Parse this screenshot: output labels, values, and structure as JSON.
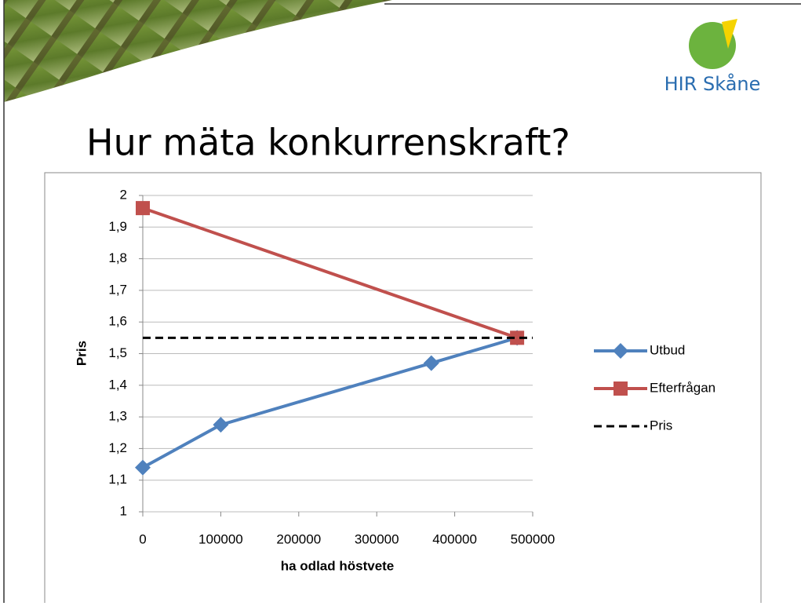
{
  "header": {
    "logo": "HIR Skåne",
    "title": "Hur mäta konkurrenskraft?"
  },
  "chart_data": {
    "type": "line",
    "xlabel": "ha odlad höstvete",
    "ylabel": "Pris",
    "xlim": [
      0,
      500000
    ],
    "xticks": [
      0,
      100000,
      200000,
      300000,
      400000,
      500000
    ],
    "ylim": [
      1,
      2
    ],
    "yticks": [
      1,
      {
        "value": 1.1,
        "label": "1,1"
      },
      {
        "value": 1.2,
        "label": "1,2"
      },
      {
        "value": 1.3,
        "label": "1,3"
      },
      {
        "value": 1.4,
        "label": "1,4"
      },
      {
        "value": 1.5,
        "label": "1,5"
      },
      {
        "value": 1.6,
        "label": "1,6"
      },
      {
        "value": 1.7,
        "label": "1,7"
      },
      {
        "value": 1.8,
        "label": "1,8"
      },
      {
        "value": 1.9,
        "label": "1,9"
      },
      2
    ],
    "grid": true,
    "legend": "right",
    "series": [
      {
        "name": "Utbud",
        "color": "#4f81bd",
        "marker": "diamond",
        "x": [
          0,
          100000,
          370000,
          480000
        ],
        "values": [
          1.14,
          1.275,
          1.47,
          1.55
        ]
      },
      {
        "name": "Efterfrågan",
        "color": "#c0504d",
        "marker": "square",
        "x": [
          0,
          480000
        ],
        "values": [
          1.96,
          1.55
        ]
      },
      {
        "name": "Pris",
        "color": "#000000",
        "marker": "none",
        "dash": true,
        "x": [
          0,
          500000
        ],
        "values": [
          1.55,
          1.55
        ]
      }
    ]
  }
}
